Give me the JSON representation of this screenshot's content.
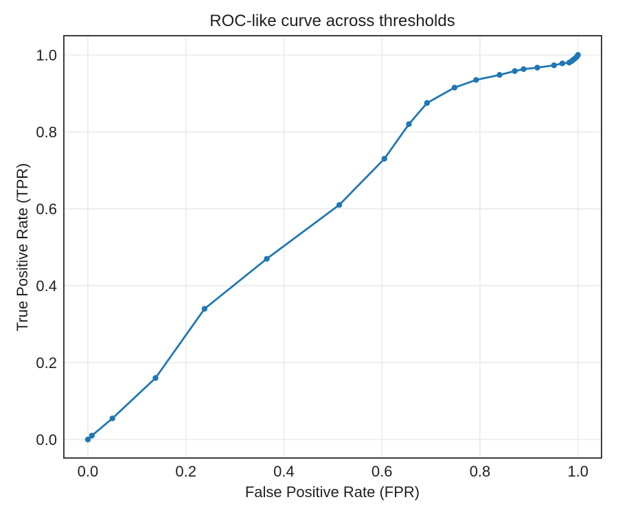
{
  "figure": {
    "background": "#ffffff",
    "grid_color": "#eaeaea",
    "spine_color": "#3b3b3b",
    "text_color": "#1f1f1f"
  },
  "chart_data": {
    "type": "line",
    "title": "ROC-like curve across thresholds",
    "xlabel": "False Positive Rate (FPR)",
    "ylabel": "True Positive Rate (TPR)",
    "grid": true,
    "legend": false,
    "xlim": [
      -0.049,
      1.048
    ],
    "ylim": [
      -0.048,
      1.05
    ],
    "x_tick_values": [
      0.0,
      0.2,
      0.4,
      0.6,
      0.8,
      1.0
    ],
    "x_tick_labels": [
      "0.0",
      "0.2",
      "0.4",
      "0.6",
      "0.8",
      "1.0"
    ],
    "y_tick_values": [
      0.0,
      0.2,
      0.4,
      0.6,
      0.8,
      1.0
    ],
    "y_tick_labels": [
      "0.0",
      "0.2",
      "0.4",
      "0.6",
      "0.8",
      "1.0"
    ],
    "series": [
      {
        "name": "roc-curve",
        "color": "#1f77b4",
        "marker": "circle",
        "marker_radius": 4.2,
        "line_width": 2.8,
        "points": [
          [
            0.0,
            0.0
          ],
          [
            0.008,
            0.01
          ],
          [
            0.05,
            0.055
          ],
          [
            0.138,
            0.16
          ],
          [
            0.238,
            0.34
          ],
          [
            0.365,
            0.47
          ],
          [
            0.513,
            0.61
          ],
          [
            0.605,
            0.73
          ],
          [
            0.655,
            0.82
          ],
          [
            0.692,
            0.875
          ],
          [
            0.748,
            0.915
          ],
          [
            0.792,
            0.935
          ],
          [
            0.84,
            0.948
          ],
          [
            0.871,
            0.958
          ],
          [
            0.889,
            0.963
          ],
          [
            0.917,
            0.967
          ],
          [
            0.951,
            0.973
          ],
          [
            0.968,
            0.978
          ],
          [
            0.982,
            0.98
          ],
          [
            0.987,
            0.984
          ],
          [
            0.991,
            0.988
          ],
          [
            0.995,
            0.992
          ],
          [
            0.998,
            0.996
          ],
          [
            1.0,
            1.0
          ]
        ]
      }
    ]
  }
}
